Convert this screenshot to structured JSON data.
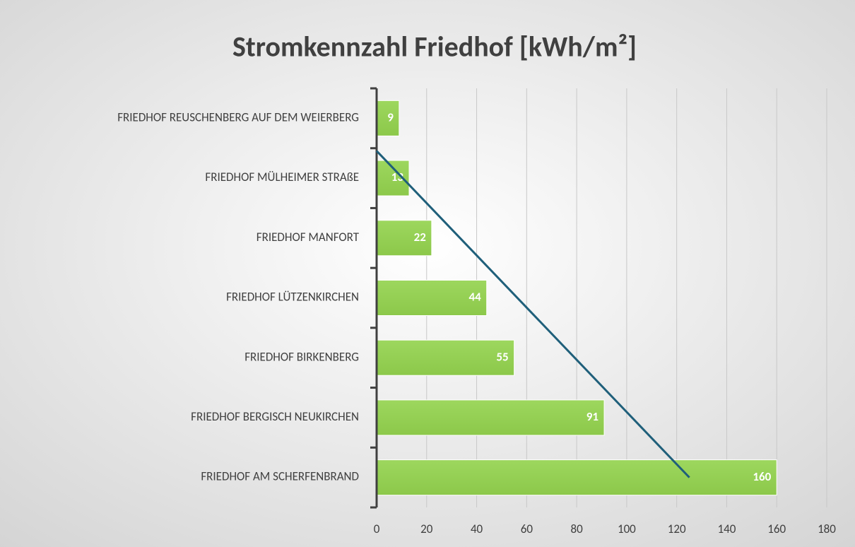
{
  "chart_data": {
    "type": "hbar",
    "title": "Stromkennzahl Friedhof [kWh/m²]",
    "categories": [
      "FRIEDHOF REUSCHENBERG AUF DEM WEIERBERG",
      "FRIEDHOF MÜLHEIMER STRAßE",
      "FRIEDHOF MANFORT",
      "FRIEDHOF LÜTZENKIRCHEN",
      "FRIEDHOF BIRKENBERG",
      "FRIEDHOF BERGISCH NEUKIRCHEN",
      "FRIEDHOF AM SCHERFENBRAND"
    ],
    "values": [
      9,
      13,
      22,
      44,
      55,
      91,
      160
    ],
    "color": "#92d050",
    "xlim": [
      0,
      180
    ],
    "xticks": [
      0,
      20,
      40,
      60,
      80,
      100,
      120,
      140,
      160,
      180
    ],
    "grid": true,
    "trendline": {
      "type": "linear",
      "color": "#1f5f7a"
    }
  }
}
